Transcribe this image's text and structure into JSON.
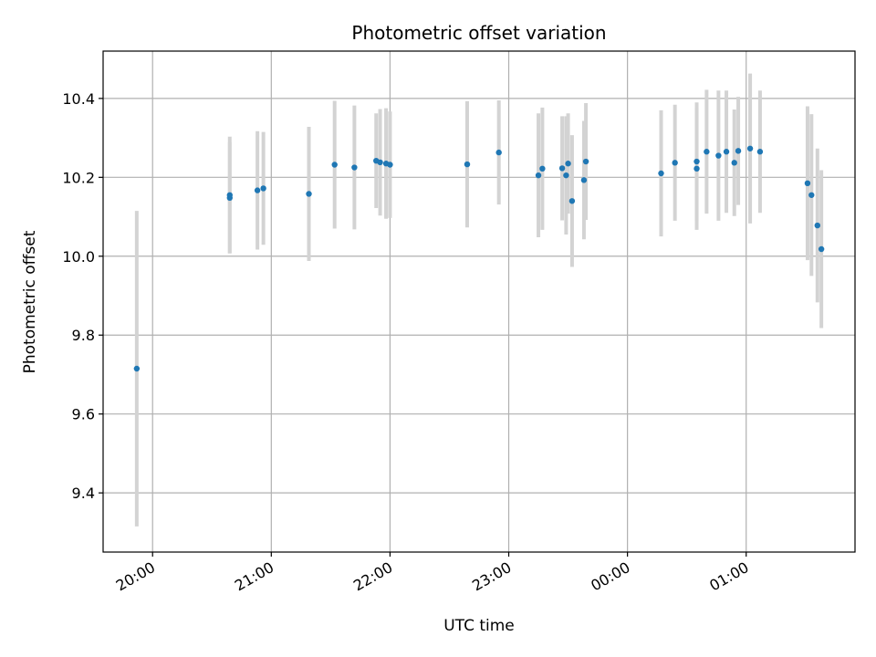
{
  "chart_data": {
    "type": "scatter",
    "title": "Photometric offset variation",
    "xlabel": "UTC time",
    "ylabel": "Photometric offset",
    "x_ticks": [
      "20:00",
      "21:00",
      "22:00",
      "23:00",
      "00:00",
      "01:00"
    ],
    "y_ticks": [
      "9.4",
      "9.6",
      "9.8",
      "10.0",
      "10.2",
      "10.4"
    ],
    "y_tick_values": [
      9.4,
      9.6,
      9.8,
      10.0,
      10.2,
      10.4
    ],
    "xlim": [
      "19:35",
      "25:55"
    ],
    "ylim": [
      9.25,
      10.52
    ],
    "grid": true,
    "point_color": "#1f77b4",
    "errorbar_color": "#d3d3d3",
    "series": [
      {
        "points": [
          {
            "x": "19:52",
            "y": 9.715,
            "yerr": 0.4
          },
          {
            "x": "20:39",
            "y": 10.155,
            "yerr": 0.148
          },
          {
            "x": "20:39",
            "y": 10.148,
            "yerr": 0.14
          },
          {
            "x": "20:53",
            "y": 10.167,
            "yerr": 0.15
          },
          {
            "x": "20:56",
            "y": 10.172,
            "yerr": 0.143
          },
          {
            "x": "21:19",
            "y": 10.158,
            "yerr": 0.17
          },
          {
            "x": "21:32",
            "y": 10.232,
            "yerr": 0.162
          },
          {
            "x": "21:42",
            "y": 10.225,
            "yerr": 0.157
          },
          {
            "x": "21:53",
            "y": 10.242,
            "yerr": 0.12
          },
          {
            "x": "21:55",
            "y": 10.238,
            "yerr": 0.135
          },
          {
            "x": "21:58",
            "y": 10.235,
            "yerr": 0.14
          },
          {
            "x": "22:00",
            "y": 10.232,
            "yerr": 0.135
          },
          {
            "x": "22:39",
            "y": 10.233,
            "yerr": 0.16
          },
          {
            "x": "22:55",
            "y": 10.263,
            "yerr": 0.132
          },
          {
            "x": "23:15",
            "y": 10.205,
            "yerr": 0.157
          },
          {
            "x": "23:17",
            "y": 10.222,
            "yerr": 0.155
          },
          {
            "x": "23:27",
            "y": 10.223,
            "yerr": 0.132
          },
          {
            "x": "23:29",
            "y": 10.205,
            "yerr": 0.15
          },
          {
            "x": "23:30",
            "y": 10.235,
            "yerr": 0.127
          },
          {
            "x": "23:32",
            "y": 10.14,
            "yerr": 0.167
          },
          {
            "x": "23:38",
            "y": 10.193,
            "yerr": 0.15
          },
          {
            "x": "23:39",
            "y": 10.24,
            "yerr": 0.148
          },
          {
            "x": "24:17",
            "y": 10.21,
            "yerr": 0.16
          },
          {
            "x": "24:24",
            "y": 10.237,
            "yerr": 0.147
          },
          {
            "x": "24:35",
            "y": 10.24,
            "yerr": 0.15
          },
          {
            "x": "24:35",
            "y": 10.222,
            "yerr": 0.155
          },
          {
            "x": "24:40",
            "y": 10.265,
            "yerr": 0.157
          },
          {
            "x": "24:46",
            "y": 10.255,
            "yerr": 0.165
          },
          {
            "x": "24:50",
            "y": 10.265,
            "yerr": 0.155
          },
          {
            "x": "24:54",
            "y": 10.237,
            "yerr": 0.135
          },
          {
            "x": "24:56",
            "y": 10.267,
            "yerr": 0.137
          },
          {
            "x": "25:02",
            "y": 10.273,
            "yerr": 0.19
          },
          {
            "x": "25:07",
            "y": 10.265,
            "yerr": 0.155
          },
          {
            "x": "25:31",
            "y": 10.185,
            "yerr": 0.195
          },
          {
            "x": "25:33",
            "y": 10.155,
            "yerr": 0.205
          },
          {
            "x": "25:36",
            "y": 10.078,
            "yerr": 0.195
          },
          {
            "x": "25:38",
            "y": 10.018,
            "yerr": 0.2
          }
        ]
      }
    ]
  }
}
